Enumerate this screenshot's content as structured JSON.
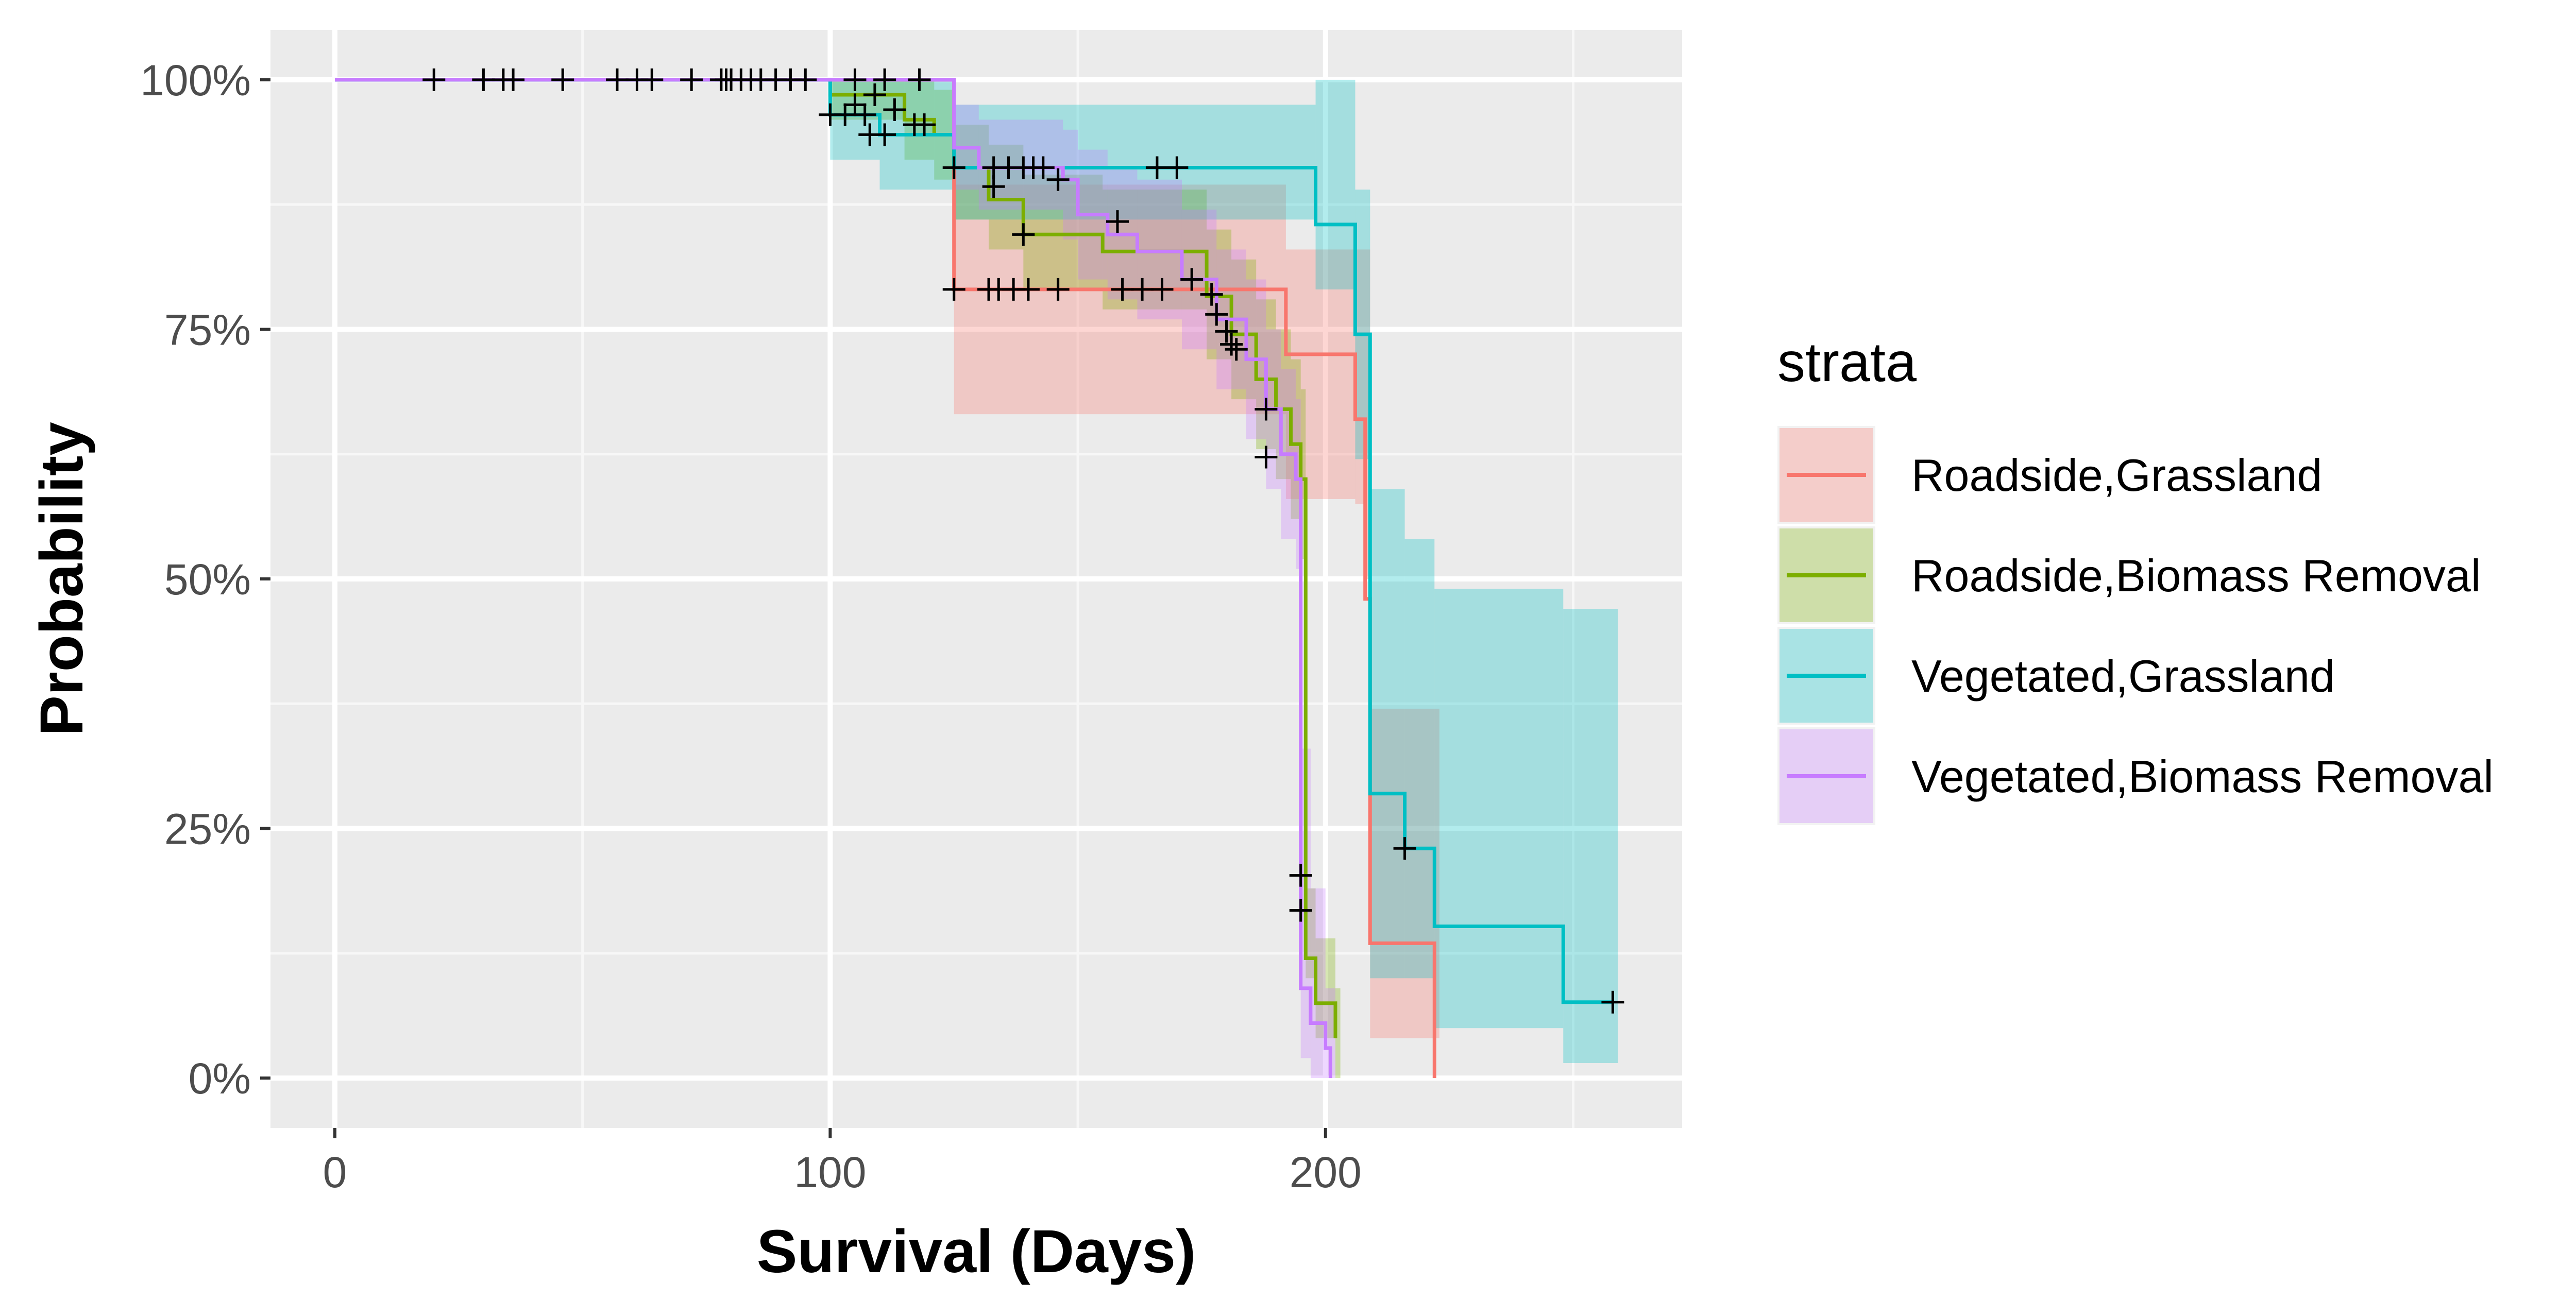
{
  "chart_data": {
    "type": "line",
    "subtype": "kaplan-meier step",
    "xlabel": "Survival (Days)",
    "ylabel": "Probability",
    "x_ticks": [
      0,
      100,
      200
    ],
    "y_ticks": [
      0,
      0.25,
      0.5,
      0.75,
      1.0
    ],
    "y_tick_labels": [
      "0%",
      "25%",
      "50%",
      "75%",
      "100%"
    ],
    "xlim": [
      -13,
      272
    ],
    "ylim": [
      -0.05,
      1.05
    ],
    "grid": true,
    "legend": {
      "title": "strata",
      "position": "right"
    },
    "series": [
      {
        "name": "Roadside,Grassland",
        "color": "#F8766D",
        "steps": [
          [
            0,
            1.0
          ],
          [
            125,
            1.0
          ],
          [
            125,
            0.79
          ],
          [
            192,
            0.79
          ],
          [
            192,
            0.725
          ],
          [
            206,
            0.725
          ],
          [
            206,
            0.66
          ],
          [
            208,
            0.66
          ],
          [
            208,
            0.48
          ],
          [
            209,
            0.48
          ],
          [
            209,
            0.135
          ],
          [
            222,
            0.135
          ],
          [
            222,
            0.0
          ]
        ],
        "ci": [
          [
            0,
            1,
            1
          ],
          [
            125,
            0.665,
            0.895
          ],
          [
            192,
            0.58,
            0.83
          ],
          [
            206,
            0.575,
            0.83
          ],
          [
            208,
            0.5,
            0.83
          ],
          [
            209,
            0.04,
            0.37
          ],
          [
            222,
            0.04,
            0.37
          ],
          [
            223,
            0.04,
            0.37
          ]
        ],
        "censored": [
          [
            125,
            0.79
          ],
          [
            132,
            0.79
          ],
          [
            134,
            0.79
          ],
          [
            137,
            0.79
          ],
          [
            140,
            0.79
          ],
          [
            146,
            0.79
          ],
          [
            159,
            0.79
          ],
          [
            163,
            0.79
          ],
          [
            167,
            0.79
          ]
        ]
      },
      {
        "name": "Roadside,Biomass Removal",
        "color": "#7CAE00",
        "steps": [
          [
            0,
            1.0
          ],
          [
            100,
            1.0
          ],
          [
            100,
            0.985
          ],
          [
            115,
            0.985
          ],
          [
            115,
            0.96
          ],
          [
            121,
            0.96
          ],
          [
            121,
            0.945
          ],
          [
            125,
            0.945
          ],
          [
            125,
            0.912
          ],
          [
            132,
            0.912
          ],
          [
            132,
            0.88
          ],
          [
            139,
            0.88
          ],
          [
            139,
            0.845
          ],
          [
            155,
            0.845
          ],
          [
            155,
            0.828
          ],
          [
            176,
            0.828
          ],
          [
            176,
            0.783
          ],
          [
            181,
            0.783
          ],
          [
            181,
            0.745
          ],
          [
            186,
            0.745
          ],
          [
            186,
            0.7
          ],
          [
            190,
            0.7
          ],
          [
            190,
            0.67
          ],
          [
            193,
            0.67
          ],
          [
            193,
            0.635
          ],
          [
            195,
            0.635
          ],
          [
            195,
            0.6
          ],
          [
            196,
            0.6
          ],
          [
            196,
            0.12
          ],
          [
            198,
            0.12
          ],
          [
            198,
            0.075
          ],
          [
            202,
            0.075
          ],
          [
            202,
            0.04
          ]
        ],
        "ci": [
          [
            0,
            1,
            1
          ],
          [
            100,
            0.96,
            1
          ],
          [
            115,
            0.92,
            1
          ],
          [
            121,
            0.9,
            0.99
          ],
          [
            125,
            0.86,
            0.955
          ],
          [
            132,
            0.83,
            0.935
          ],
          [
            139,
            0.79,
            0.905
          ],
          [
            155,
            0.77,
            0.89
          ],
          [
            176,
            0.72,
            0.85
          ],
          [
            181,
            0.68,
            0.82
          ],
          [
            186,
            0.63,
            0.78
          ],
          [
            190,
            0.6,
            0.75
          ],
          [
            193,
            0.56,
            0.72
          ],
          [
            195,
            0.52,
            0.69
          ],
          [
            196,
            0.1,
            0.19
          ],
          [
            198,
            0.04,
            0.14
          ],
          [
            202,
            0.0,
            0.09
          ],
          [
            203,
            0.0,
            0.09
          ]
        ],
        "censored": [
          [
            109,
            0.985
          ],
          [
            113,
            0.97
          ],
          [
            117,
            0.955
          ],
          [
            133,
            0.893
          ],
          [
            139,
            0.845
          ]
        ]
      },
      {
        "name": "Vegetated,Grassland",
        "color": "#00BFC4",
        "steps": [
          [
            0,
            1.0
          ],
          [
            100,
            1.0
          ],
          [
            100,
            0.965
          ],
          [
            110,
            0.965
          ],
          [
            110,
            0.945
          ],
          [
            125,
            0.945
          ],
          [
            125,
            0.912
          ],
          [
            198,
            0.912
          ],
          [
            198,
            0.855
          ],
          [
            206,
            0.855
          ],
          [
            206,
            0.745
          ],
          [
            209,
            0.745
          ],
          [
            209,
            0.285
          ],
          [
            216,
            0.285
          ],
          [
            216,
            0.23
          ],
          [
            222,
            0.23
          ],
          [
            222,
            0.152
          ],
          [
            248,
            0.152
          ],
          [
            248,
            0.076
          ],
          [
            258,
            0.076
          ]
        ],
        "ci": [
          [
            0,
            1,
            1
          ],
          [
            100,
            0.92,
            1
          ],
          [
            110,
            0.89,
            1
          ],
          [
            125,
            0.86,
            0.975
          ],
          [
            198,
            0.79,
            1.0
          ],
          [
            206,
            0.62,
            0.89
          ],
          [
            209,
            0.1,
            0.59
          ],
          [
            216,
            0.1,
            0.54
          ],
          [
            222,
            0.05,
            0.49
          ],
          [
            248,
            0.015,
            0.47
          ],
          [
            259,
            0.015,
            0.47
          ]
        ],
        "censored": [
          [
            258,
            0.076
          ],
          [
            216,
            0.23
          ],
          [
            100,
            0.965
          ],
          [
            103,
            0.965
          ],
          [
            108,
            0.945
          ],
          [
            111,
            0.945
          ]
        ]
      },
      {
        "name": "Vegetated,Biomass Removal",
        "color": "#C77CFF",
        "steps": [
          [
            0,
            1.0
          ],
          [
            125,
            1.0
          ],
          [
            125,
            0.932
          ],
          [
            130,
            0.932
          ],
          [
            130,
            0.912
          ],
          [
            147,
            0.912
          ],
          [
            147,
            0.9
          ],
          [
            150,
            0.9
          ],
          [
            150,
            0.865
          ],
          [
            156,
            0.865
          ],
          [
            156,
            0.845
          ],
          [
            162,
            0.845
          ],
          [
            162,
            0.828
          ],
          [
            171,
            0.828
          ],
          [
            171,
            0.8
          ],
          [
            178,
            0.8
          ],
          [
            178,
            0.76
          ],
          [
            184,
            0.76
          ],
          [
            184,
            0.72
          ],
          [
            188,
            0.72
          ],
          [
            188,
            0.67
          ],
          [
            191,
            0.67
          ],
          [
            191,
            0.625
          ],
          [
            194,
            0.625
          ],
          [
            194,
            0.6
          ],
          [
            195,
            0.6
          ],
          [
            195,
            0.09
          ],
          [
            197,
            0.09
          ],
          [
            197,
            0.055
          ],
          [
            200,
            0.055
          ],
          [
            200,
            0.03
          ],
          [
            201,
            0.03
          ],
          [
            201,
            0.0
          ]
        ],
        "ci": [
          [
            0,
            1,
            1
          ],
          [
            125,
            0.89,
            0.975
          ],
          [
            130,
            0.87,
            0.96
          ],
          [
            147,
            0.84,
            0.95
          ],
          [
            150,
            0.8,
            0.93
          ],
          [
            156,
            0.78,
            0.91
          ],
          [
            162,
            0.76,
            0.9
          ],
          [
            171,
            0.73,
            0.87
          ],
          [
            178,
            0.69,
            0.83
          ],
          [
            184,
            0.64,
            0.8
          ],
          [
            188,
            0.59,
            0.75
          ],
          [
            191,
            0.54,
            0.71
          ],
          [
            194,
            0.51,
            0.68
          ],
          [
            195,
            0.02,
            0.33
          ],
          [
            197,
            0.0,
            0.19
          ],
          [
            200,
            0.0,
            0.09
          ],
          [
            202,
            0.0,
            0.09
          ]
        ],
        "censored": [
          [
            20,
            1.0
          ],
          [
            30,
            1.0
          ],
          [
            34,
            1.0
          ],
          [
            36,
            1.0
          ],
          [
            46,
            1.0
          ],
          [
            57,
            1.0
          ],
          [
            61,
            1.0
          ],
          [
            64,
            1.0
          ],
          [
            72,
            1.0
          ],
          [
            78,
            1.0
          ],
          [
            79,
            1.0
          ],
          [
            80,
            1.0
          ],
          [
            82,
            1.0
          ],
          [
            84,
            1.0
          ],
          [
            86,
            1.0
          ],
          [
            89,
            1.0
          ],
          [
            92,
            1.0
          ],
          [
            95,
            1.0
          ],
          [
            105,
            1.0
          ],
          [
            111,
            1.0
          ],
          [
            118,
            1.0
          ],
          [
            105,
            0.975
          ],
          [
            107,
            0.965
          ],
          [
            119,
            0.955
          ],
          [
            125,
            0.912
          ],
          [
            133,
            0.912
          ],
          [
            136,
            0.912
          ],
          [
            139,
            0.912
          ],
          [
            141,
            0.912
          ],
          [
            143,
            0.912
          ],
          [
            146,
            0.9
          ],
          [
            158,
            0.858
          ],
          [
            166,
            0.912
          ],
          [
            170,
            0.912
          ],
          [
            173,
            0.8
          ],
          [
            177,
            0.785
          ],
          [
            178,
            0.765
          ],
          [
            180,
            0.748
          ],
          [
            181,
            0.735
          ],
          [
            182,
            0.73
          ],
          [
            188,
            0.67
          ],
          [
            188,
            0.622
          ],
          [
            195,
            0.203
          ],
          [
            195,
            0.168
          ]
        ]
      }
    ]
  }
}
